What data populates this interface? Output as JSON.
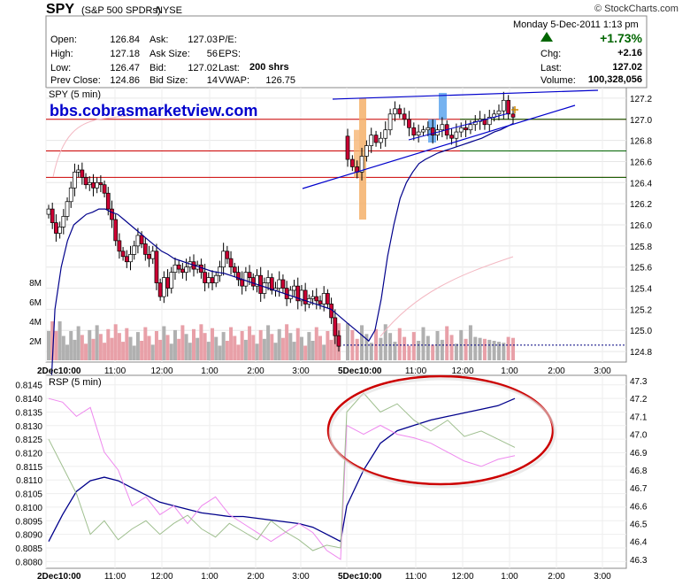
{
  "header": {
    "symbol": "SPY",
    "name": "(S&P 500 SPDRs)",
    "exchange": "NYSE",
    "credit": "© StockCharts.com",
    "datetime": "Monday  5-Dec-2011  1:13 pm",
    "change_pct": "+1.73%"
  },
  "quote": {
    "open_label": "Open:",
    "open": "126.84",
    "high_label": "High:",
    "high": "127.18",
    "low_label": "Low:",
    "low": "126.47",
    "prevclose_label": "Prev Close:",
    "prevclose": "124.86",
    "ask_label": "Ask:",
    "ask": "127.03",
    "asksize_label": "Ask Size:",
    "asksize": "56",
    "bid_label": "Bid:",
    "bid": "127.02",
    "bidsize_label": "Bid Size:",
    "bidsize": "14",
    "pe_label": "P/E:",
    "eps_label": "EPS:",
    "last_label": "Last:",
    "last_size": "200 shrs",
    "vwap_label": "VWAP:",
    "vwap": "126.75",
    "chg_label": "Chg:",
    "chg": "+2.16",
    "last2_label": "Last:",
    "last": "127.02",
    "volume_label": "Volume:",
    "volume": "100,328,056"
  },
  "colors": {
    "up_candle": "#ffffff",
    "down_candle": "#cc0033",
    "ma": "#00008b",
    "hline_red": "#cc0000",
    "hline_green": "#006400",
    "trend_blue": "#0000cc",
    "orange_bar": "#f5b06a",
    "blue_bar": "#66aaee",
    "volume_up": "#b0b0b0",
    "volume_down": "#e8a0a8",
    "watermark": "#0000cc",
    "ellipse": "#cc0000",
    "change_up": "#006600"
  },
  "chart_data": [
    {
      "type": "candlestick",
      "title": "SPY (5 min)",
      "watermark": "bbs.cobrasmarketview.com",
      "ylim": [
        124.7,
        127.3
      ],
      "y_ticks": [
        "127.2",
        "127.0",
        "126.8",
        "126.6",
        "126.4",
        "126.2",
        "126.0",
        "125.8",
        "125.6",
        "125.4",
        "125.2",
        "125.0",
        "124.8"
      ],
      "y_tick_values": [
        127.2,
        127.0,
        126.8,
        126.6,
        126.4,
        126.2,
        126.0,
        125.8,
        125.6,
        125.4,
        125.2,
        125.0,
        124.8
      ],
      "volume_ticks": [
        "8M",
        "6M",
        "4M",
        "2M"
      ],
      "volume_tick_values": [
        8,
        6,
        4,
        2
      ],
      "x_ticks": [
        "2Dec10:00",
        "11:00",
        "12:00",
        "1:00",
        "2:00",
        "3:00",
        "5Dec10:00",
        "11:00",
        "12:00",
        "1:00",
        "2:00",
        "3:00"
      ],
      "horizontal_levels_red": [
        127.0,
        126.7,
        126.45
      ],
      "horizontal_levels_green": [
        127.0,
        126.7,
        126.45
      ],
      "reference_level": 124.86,
      "series": [
        {
          "name": "close",
          "values": [
            126.15,
            126.02,
            125.92,
            125.98,
            126.08,
            126.22,
            126.35,
            126.5,
            126.52,
            126.45,
            126.38,
            126.4,
            126.35,
            126.4,
            126.38,
            126.3,
            126.15,
            126.05,
            125.85,
            125.75,
            125.7,
            125.65,
            125.72,
            125.8,
            125.9,
            125.82,
            125.72,
            125.68,
            125.75,
            125.45,
            125.32,
            125.5,
            125.4,
            125.55,
            125.62,
            125.58,
            125.55,
            125.6,
            125.65,
            125.58,
            125.62,
            125.55,
            125.45,
            125.5,
            125.45,
            125.52,
            125.6,
            125.75,
            125.68,
            125.6,
            125.55,
            125.48,
            125.42,
            125.55,
            125.5,
            125.42,
            125.52,
            125.35,
            125.45,
            125.5,
            125.38,
            125.4,
            125.48,
            125.4,
            125.3,
            125.38,
            125.42,
            125.28,
            125.38,
            125.25,
            125.3,
            125.32,
            125.28,
            125.25,
            125.35,
            125.25,
            125.12,
            124.95,
            124.85,
            126.62,
            126.55,
            126.5,
            126.65,
            126.75,
            126.85,
            126.78,
            126.82,
            126.9,
            127.05,
            127.1,
            127.05,
            127.0,
            126.92,
            126.85,
            126.88,
            126.9,
            126.92,
            126.85,
            126.9,
            126.95,
            126.85,
            126.82,
            126.88,
            126.92,
            126.9,
            126.95,
            126.98,
            127.0,
            126.95,
            127.02,
            127.05,
            127.08,
            127.18,
            127.05,
            127.02
          ]
        }
      ],
      "ma_values": [
        124.0,
        125.2,
        125.6,
        125.85,
        126.0,
        126.05,
        126.1,
        126.12,
        126.15,
        126.15,
        126.12,
        126.1,
        126.05,
        126.0,
        125.95,
        125.9,
        125.85,
        125.8,
        125.75,
        125.72,
        125.68,
        125.66,
        125.64,
        125.62,
        125.6,
        125.58,
        125.56,
        125.55,
        125.54,
        125.52,
        125.5,
        125.48,
        125.46,
        125.44,
        125.42,
        125.4,
        125.38,
        125.36,
        125.34,
        125.32,
        125.3,
        125.28,
        125.26,
        125.24,
        125.22,
        125.2,
        125.15,
        125.1,
        125.05,
        125.0,
        124.95,
        124.9,
        125.0,
        125.3,
        125.7,
        126.0,
        126.25,
        126.4,
        126.5,
        126.58,
        126.62,
        126.65,
        126.68,
        126.7,
        126.72,
        126.74,
        126.76,
        126.78,
        126.8,
        126.82,
        126.85,
        126.88,
        126.9,
        126.93,
        126.96
      ]
    },
    {
      "type": "line",
      "title": "RSP (5 min)",
      "left_ticks": [
        "0.8145",
        "0.8140",
        "0.8135",
        "0.8130",
        "0.8125",
        "0.8120",
        "0.8115",
        "0.8110",
        "0.8105",
        "0.8100",
        "0.8095",
        "0.8090",
        "0.8085",
        "0.8080"
      ],
      "left_tick_values": [
        0.8145,
        0.814,
        0.8135,
        0.813,
        0.8125,
        0.812,
        0.8115,
        0.811,
        0.8105,
        0.81,
        0.8095,
        0.809,
        0.8085,
        0.808
      ],
      "right_ticks": [
        "47.3",
        "47.2",
        "47.1",
        "47.0",
        "46.9",
        "46.8",
        "46.7",
        "46.6",
        "46.5",
        "46.4",
        "46.3"
      ],
      "right_tick_values": [
        47.3,
        47.2,
        47.1,
        47.0,
        46.9,
        46.8,
        46.7,
        46.6,
        46.5,
        46.4,
        46.3
      ],
      "left_ylim": [
        0.80775,
        0.81485
      ],
      "right_ylim": [
        46.25,
        47.33
      ],
      "x_ticks": [
        "2Dec10:00",
        "11:00",
        "12:00",
        "1:00",
        "2:00",
        "3:00",
        "5Dec10:00",
        "11:00",
        "12:00",
        "1:00",
        "2:00",
        "3:00"
      ],
      "series": [
        {
          "name": "ma",
          "axis": "right",
          "values": [
            46.4,
            46.55,
            46.68,
            46.74,
            46.76,
            46.74,
            46.7,
            46.66,
            46.62,
            46.6,
            46.58,
            46.56,
            46.55,
            46.54,
            46.54,
            46.53,
            46.52,
            46.51,
            46.5,
            46.48,
            46.44,
            46.4,
            46.6,
            46.8,
            46.95,
            47.02,
            47.05,
            47.08,
            47.1,
            47.12,
            47.14,
            47.16,
            47.2
          ]
        },
        {
          "name": "pink",
          "axis": "right",
          "values": [
            47.2,
            47.18,
            47.1,
            47.15,
            46.9,
            46.8,
            46.6,
            46.65,
            46.55,
            46.6,
            46.5,
            46.6,
            46.65,
            46.55,
            46.5,
            46.45,
            46.4,
            46.45,
            46.5,
            46.45,
            46.35,
            46.3,
            47.05,
            47.0,
            47.05,
            47.0,
            46.98,
            46.95,
            46.9,
            46.85,
            46.82,
            46.86,
            46.88
          ]
        },
        {
          "name": "green",
          "axis": "left",
          "values": [
            0.8125,
            0.8115,
            0.8105,
            0.809,
            0.8095,
            0.8088,
            0.8092,
            0.8095,
            0.809,
            0.8094,
            0.8097,
            0.8092,
            0.8089,
            0.8094,
            0.8091,
            0.8088,
            0.8095,
            0.8091,
            0.8088,
            0.8084,
            0.8086,
            0.8085,
            0.8135,
            0.8142,
            0.8135,
            0.8138,
            0.8132,
            0.8128,
            0.8132,
            0.8126,
            0.8128,
            0.8125,
            0.8122
          ]
        }
      ]
    }
  ]
}
